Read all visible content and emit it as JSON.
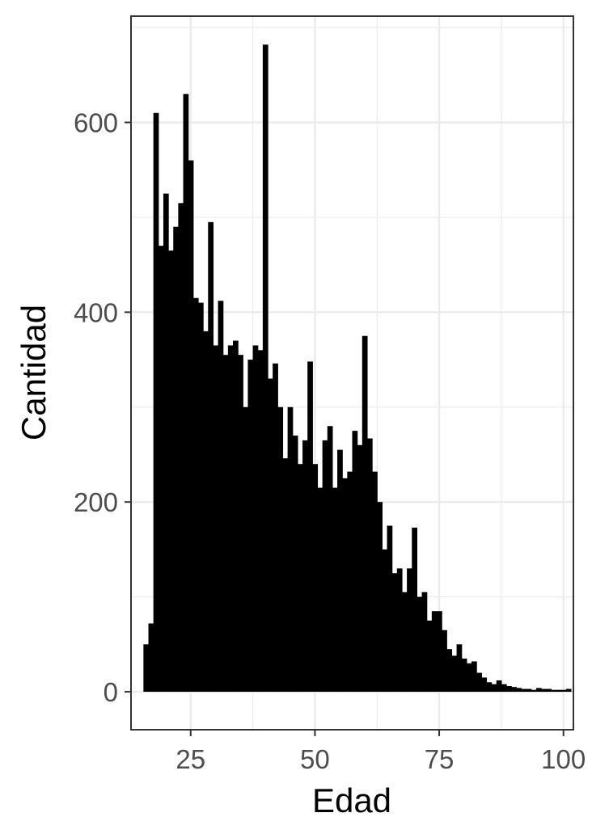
{
  "chart_data": {
    "type": "bar",
    "xlabel": "Edad",
    "ylabel": "Cantidad",
    "xlim": [
      13,
      102
    ],
    "ylim": [
      -40,
      712
    ],
    "x_ticks": [
      25,
      50,
      75,
      100
    ],
    "y_ticks": [
      0,
      200,
      400,
      600
    ],
    "grid": true,
    "colors": {
      "bar": "#000000",
      "grid": "#ebebeb",
      "panel_border": "#333333"
    },
    "x": [
      16,
      17,
      18,
      19,
      20,
      21,
      22,
      23,
      24,
      25,
      26,
      27,
      28,
      29,
      30,
      31,
      32,
      33,
      34,
      35,
      36,
      37,
      38,
      39,
      40,
      41,
      42,
      43,
      44,
      45,
      46,
      47,
      48,
      49,
      50,
      51,
      52,
      53,
      54,
      55,
      56,
      57,
      58,
      59,
      60,
      61,
      62,
      63,
      64,
      65,
      66,
      67,
      68,
      69,
      70,
      71,
      72,
      73,
      74,
      75,
      76,
      77,
      78,
      79,
      80,
      81,
      82,
      83,
      84,
      85,
      86,
      87,
      88,
      89,
      90,
      91,
      92,
      93,
      94,
      95,
      96,
      97,
      98,
      99,
      100,
      101
    ],
    "values": [
      50,
      72,
      610,
      470,
      525,
      465,
      490,
      515,
      630,
      560,
      415,
      410,
      380,
      495,
      365,
      412,
      355,
      365,
      370,
      355,
      300,
      350,
      365,
      360,
      682,
      330,
      346,
      300,
      246,
      300,
      270,
      240,
      265,
      348,
      240,
      215,
      265,
      280,
      215,
      255,
      225,
      232,
      275,
      260,
      375,
      267,
      232,
      200,
      150,
      175,
      125,
      130,
      105,
      130,
      173,
      100,
      105,
      75,
      85,
      85,
      65,
      45,
      38,
      50,
      35,
      30,
      32,
      20,
      15,
      10,
      8,
      12,
      8,
      6,
      5,
      4,
      3,
      3,
      2,
      4,
      3,
      3,
      2,
      2,
      2,
      3
    ]
  }
}
